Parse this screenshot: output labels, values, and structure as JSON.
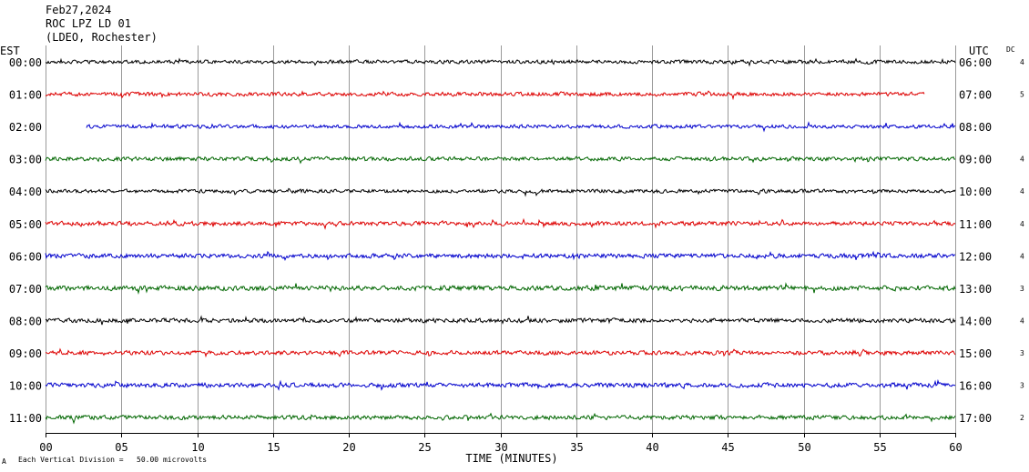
{
  "header": {
    "date": "Feb27,2024",
    "station": "ROC LPZ LD 01",
    "network": "(LDEO, Rochester)"
  },
  "left_axis_label": "EST",
  "right_axis_label": "UTC",
  "dc_label": "DC",
  "footer": {
    "division_text": "Each Vertical Division =   50.00 microvolts",
    "mark": "A"
  },
  "chart_data": {
    "type": "line",
    "xlabel": "TIME (MINUTES)",
    "xlim": [
      0,
      60
    ],
    "xticks": [
      "00",
      "05",
      "10",
      "15",
      "20",
      "25",
      "30",
      "35",
      "40",
      "45",
      "50",
      "55",
      "60"
    ],
    "grid": true,
    "trace_colors": [
      "#000000",
      "#dd0000",
      "#0000cc",
      "#006600"
    ],
    "rows": [
      {
        "est": "00:00",
        "utc": "06:00",
        "dc": "4",
        "color": "#000000",
        "start": 0,
        "end": 60,
        "amplitude": 2.4
      },
      {
        "est": "01:00",
        "utc": "07:00",
        "dc": "5",
        "color": "#dd0000",
        "start": 0,
        "end": 58,
        "amplitude": 2.6
      },
      {
        "est": "02:00",
        "utc": "08:00",
        "dc": "",
        "color": "#0000cc",
        "start": 2.7,
        "end": 60,
        "amplitude": 2.4
      },
      {
        "est": "03:00",
        "utc": "09:00",
        "dc": "4",
        "color": "#006600",
        "start": 0,
        "end": 60,
        "amplitude": 2.6
      },
      {
        "est": "04:00",
        "utc": "10:00",
        "dc": "4",
        "color": "#000000",
        "start": 0,
        "end": 60,
        "amplitude": 2.4
      },
      {
        "est": "05:00",
        "utc": "11:00",
        "dc": "4",
        "color": "#dd0000",
        "start": 0,
        "end": 60,
        "amplitude": 2.8
      },
      {
        "est": "06:00",
        "utc": "12:00",
        "dc": "4",
        "color": "#0000cc",
        "start": 0,
        "end": 60,
        "amplitude": 3.0
      },
      {
        "est": "07:00",
        "utc": "13:00",
        "dc": "3",
        "color": "#006600",
        "start": 0,
        "end": 60,
        "amplitude": 3.2
      },
      {
        "est": "08:00",
        "utc": "14:00",
        "dc": "4",
        "color": "#000000",
        "start": 0,
        "end": 60,
        "amplitude": 2.8
      },
      {
        "est": "09:00",
        "utc": "15:00",
        "dc": "3",
        "color": "#dd0000",
        "start": 0,
        "end": 60,
        "amplitude": 2.8
      },
      {
        "est": "10:00",
        "utc": "16:00",
        "dc": "3",
        "color": "#0000cc",
        "start": 0,
        "end": 60,
        "amplitude": 3.0
      },
      {
        "est": "11:00",
        "utc": "17:00",
        "dc": "2",
        "color": "#006600",
        "start": 0,
        "end": 60,
        "amplitude": 2.8
      }
    ]
  }
}
